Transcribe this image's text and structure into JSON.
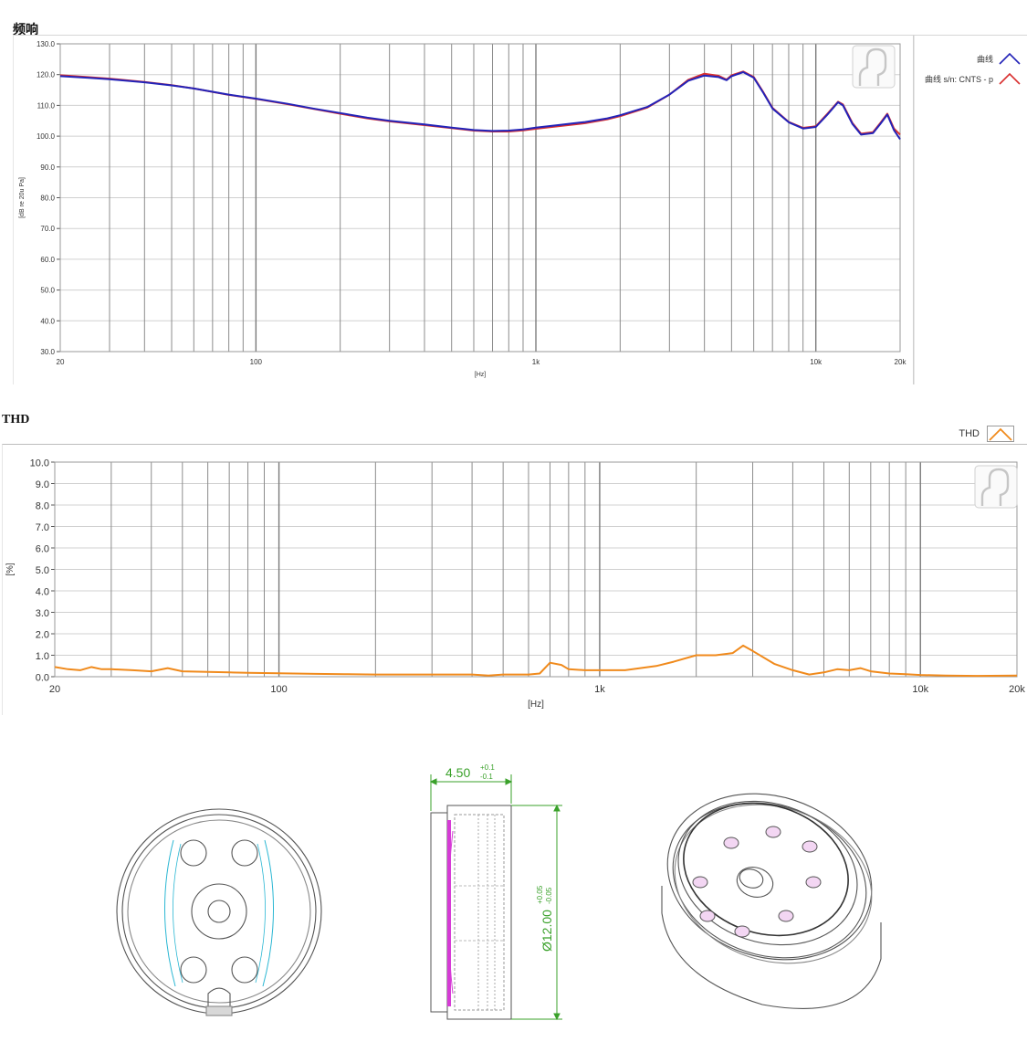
{
  "chart_data": [
    {
      "type": "line",
      "title": "频响",
      "xlabel": "[Hz]",
      "ylabel": "[dB re 20u Pa]",
      "xscale": "log",
      "xlim": [
        20,
        20000
      ],
      "ylim": [
        30,
        130
      ],
      "yticks": [
        "130.0",
        "120.0",
        "110.0",
        "100.0",
        "90.0",
        "80.0",
        "70.0",
        "60.0",
        "50.0",
        "40.0",
        "30.0"
      ],
      "xticks": [
        "20",
        "100",
        "1k",
        "10k",
        "20k"
      ],
      "grid": true,
      "legend_placement": "right",
      "series": [
        {
          "name": "曲线",
          "color": "#2323b8",
          "points": [
            [
              20,
              119.5
            ],
            [
              25,
              119
            ],
            [
              30,
              118.5
            ],
            [
              40,
              117.5
            ],
            [
              50,
              116.5
            ],
            [
              60,
              115.5
            ],
            [
              80,
              113.5
            ],
            [
              100,
              112.2
            ],
            [
              130,
              110.5
            ],
            [
              160,
              109
            ],
            [
              200,
              107.5
            ],
            [
              250,
              106
            ],
            [
              300,
              105
            ],
            [
              400,
              103.8
            ],
            [
              500,
              102.8
            ],
            [
              600,
              102
            ],
            [
              700,
              101.7
            ],
            [
              800,
              101.8
            ],
            [
              900,
              102.2
            ],
            [
              1000,
              102.8
            ],
            [
              1200,
              103.6
            ],
            [
              1500,
              104.6
            ],
            [
              1800,
              105.8
            ],
            [
              2000,
              106.8
            ],
            [
              2500,
              109.5
            ],
            [
              3000,
              113.5
            ],
            [
              3500,
              118
            ],
            [
              4000,
              119.7
            ],
            [
              4500,
              119.2
            ],
            [
              4800,
              118.2
            ],
            [
              5000,
              119.5
            ],
            [
              5500,
              120.8
            ],
            [
              6000,
              119
            ],
            [
              6500,
              114
            ],
            [
              7000,
              109
            ],
            [
              8000,
              104.5
            ],
            [
              9000,
              102.5
            ],
            [
              10000,
              103
            ],
            [
              11000,
              107
            ],
            [
              12000,
              111
            ],
            [
              12500,
              110
            ],
            [
              13500,
              104
            ],
            [
              14500,
              100.5
            ],
            [
              16000,
              101
            ],
            [
              17000,
              104
            ],
            [
              18000,
              107
            ],
            [
              19000,
              102
            ],
            [
              20000,
              99
            ]
          ]
        },
        {
          "name": "曲线 s/n: CNTS - p",
          "color": "#d93030",
          "points": [
            [
              20,
              119.8
            ],
            [
              25,
              119.2
            ],
            [
              30,
              118.7
            ],
            [
              40,
              117.6
            ],
            [
              50,
              116.6
            ],
            [
              60,
              115.5
            ],
            [
              80,
              113.4
            ],
            [
              100,
              112.1
            ],
            [
              130,
              110.4
            ],
            [
              160,
              108.9
            ],
            [
              200,
              107.3
            ],
            [
              250,
              105.8
            ],
            [
              300,
              104.8
            ],
            [
              400,
              103.6
            ],
            [
              500,
              102.6
            ],
            [
              600,
              101.8
            ],
            [
              700,
              101.5
            ],
            [
              800,
              101.5
            ],
            [
              900,
              101.9
            ],
            [
              1000,
              102.4
            ],
            [
              1200,
              103.2
            ],
            [
              1500,
              104.2
            ],
            [
              1800,
              105.5
            ],
            [
              2000,
              106.5
            ],
            [
              2500,
              109.3
            ],
            [
              3000,
              113.5
            ],
            [
              3500,
              118.3
            ],
            [
              4000,
              120.3
            ],
            [
              4500,
              119.6
            ],
            [
              4800,
              118.4
            ],
            [
              5000,
              119.8
            ],
            [
              5500,
              121
            ],
            [
              6000,
              119.2
            ],
            [
              6500,
              114.2
            ],
            [
              7000,
              109.2
            ],
            [
              8000,
              104.6
            ],
            [
              9000,
              102.7
            ],
            [
              10000,
              103.2
            ],
            [
              11000,
              107.3
            ],
            [
              12000,
              111.2
            ],
            [
              12500,
              110.3
            ],
            [
              13500,
              104.3
            ],
            [
              14500,
              100.8
            ],
            [
              16000,
              101.3
            ],
            [
              17000,
              104.3
            ],
            [
              18000,
              107.3
            ],
            [
              19000,
              102.5
            ],
            [
              20000,
              100.5
            ]
          ]
        }
      ]
    },
    {
      "type": "line",
      "title": "THD",
      "xlabel": "[Hz]",
      "ylabel": "[%]",
      "xscale": "log",
      "xlim": [
        20,
        20000
      ],
      "ylim": [
        0,
        10
      ],
      "yticks": [
        "10.0",
        "9.0",
        "8.0",
        "7.0",
        "6.0",
        "5.0",
        "4.0",
        "3.0",
        "2.0",
        "1.0",
        "0.0"
      ],
      "xticks": [
        "20",
        "100",
        "1k",
        "10k",
        "20k"
      ],
      "grid": true,
      "legend_placement": "top-right",
      "series": [
        {
          "name": "THD",
          "color": "#f08a1c",
          "points": [
            [
              20,
              0.45
            ],
            [
              22,
              0.35
            ],
            [
              24,
              0.3
            ],
            [
              26,
              0.45
            ],
            [
              28,
              0.35
            ],
            [
              30,
              0.35
            ],
            [
              35,
              0.3
            ],
            [
              40,
              0.25
            ],
            [
              45,
              0.4
            ],
            [
              50,
              0.25
            ],
            [
              60,
              0.22
            ],
            [
              70,
              0.2
            ],
            [
              80,
              0.18
            ],
            [
              100,
              0.16
            ],
            [
              130,
              0.13
            ],
            [
              160,
              0.12
            ],
            [
              200,
              0.1
            ],
            [
              300,
              0.1
            ],
            [
              400,
              0.1
            ],
            [
              450,
              0.05
            ],
            [
              500,
              0.1
            ],
            [
              600,
              0.1
            ],
            [
              650,
              0.15
            ],
            [
              700,
              0.65
            ],
            [
              760,
              0.55
            ],
            [
              800,
              0.35
            ],
            [
              900,
              0.3
            ],
            [
              1000,
              0.3
            ],
            [
              1200,
              0.3
            ],
            [
              1500,
              0.5
            ],
            [
              1700,
              0.7
            ],
            [
              2000,
              1.0
            ],
            [
              2300,
              1.0
            ],
            [
              2600,
              1.1
            ],
            [
              2800,
              1.45
            ],
            [
              3000,
              1.2
            ],
            [
              3500,
              0.6
            ],
            [
              4000,
              0.3
            ],
            [
              4500,
              0.1
            ],
            [
              5000,
              0.2
            ],
            [
              5500,
              0.35
            ],
            [
              6000,
              0.3
            ],
            [
              6500,
              0.4
            ],
            [
              7000,
              0.25
            ],
            [
              8000,
              0.15
            ],
            [
              9000,
              0.12
            ],
            [
              10000,
              0.08
            ],
            [
              12000,
              0.05
            ],
            [
              15000,
              0.04
            ],
            [
              20000,
              0.05
            ]
          ]
        }
      ]
    }
  ],
  "drawing": {
    "dimension_width": "4.50",
    "dimension_width_tol_upper": "+0.1",
    "dimension_width_tol_lower": "-0.1",
    "dimension_diameter": "Ø12.00",
    "dimension_diameter_tol_upper": "+0.05",
    "dimension_diameter_tol_lower": "-0.05",
    "dimension_color": "#3aa12a",
    "line_color": "#444444",
    "accent_colors": [
      "#d63bd6",
      "#2bb7d3"
    ]
  }
}
